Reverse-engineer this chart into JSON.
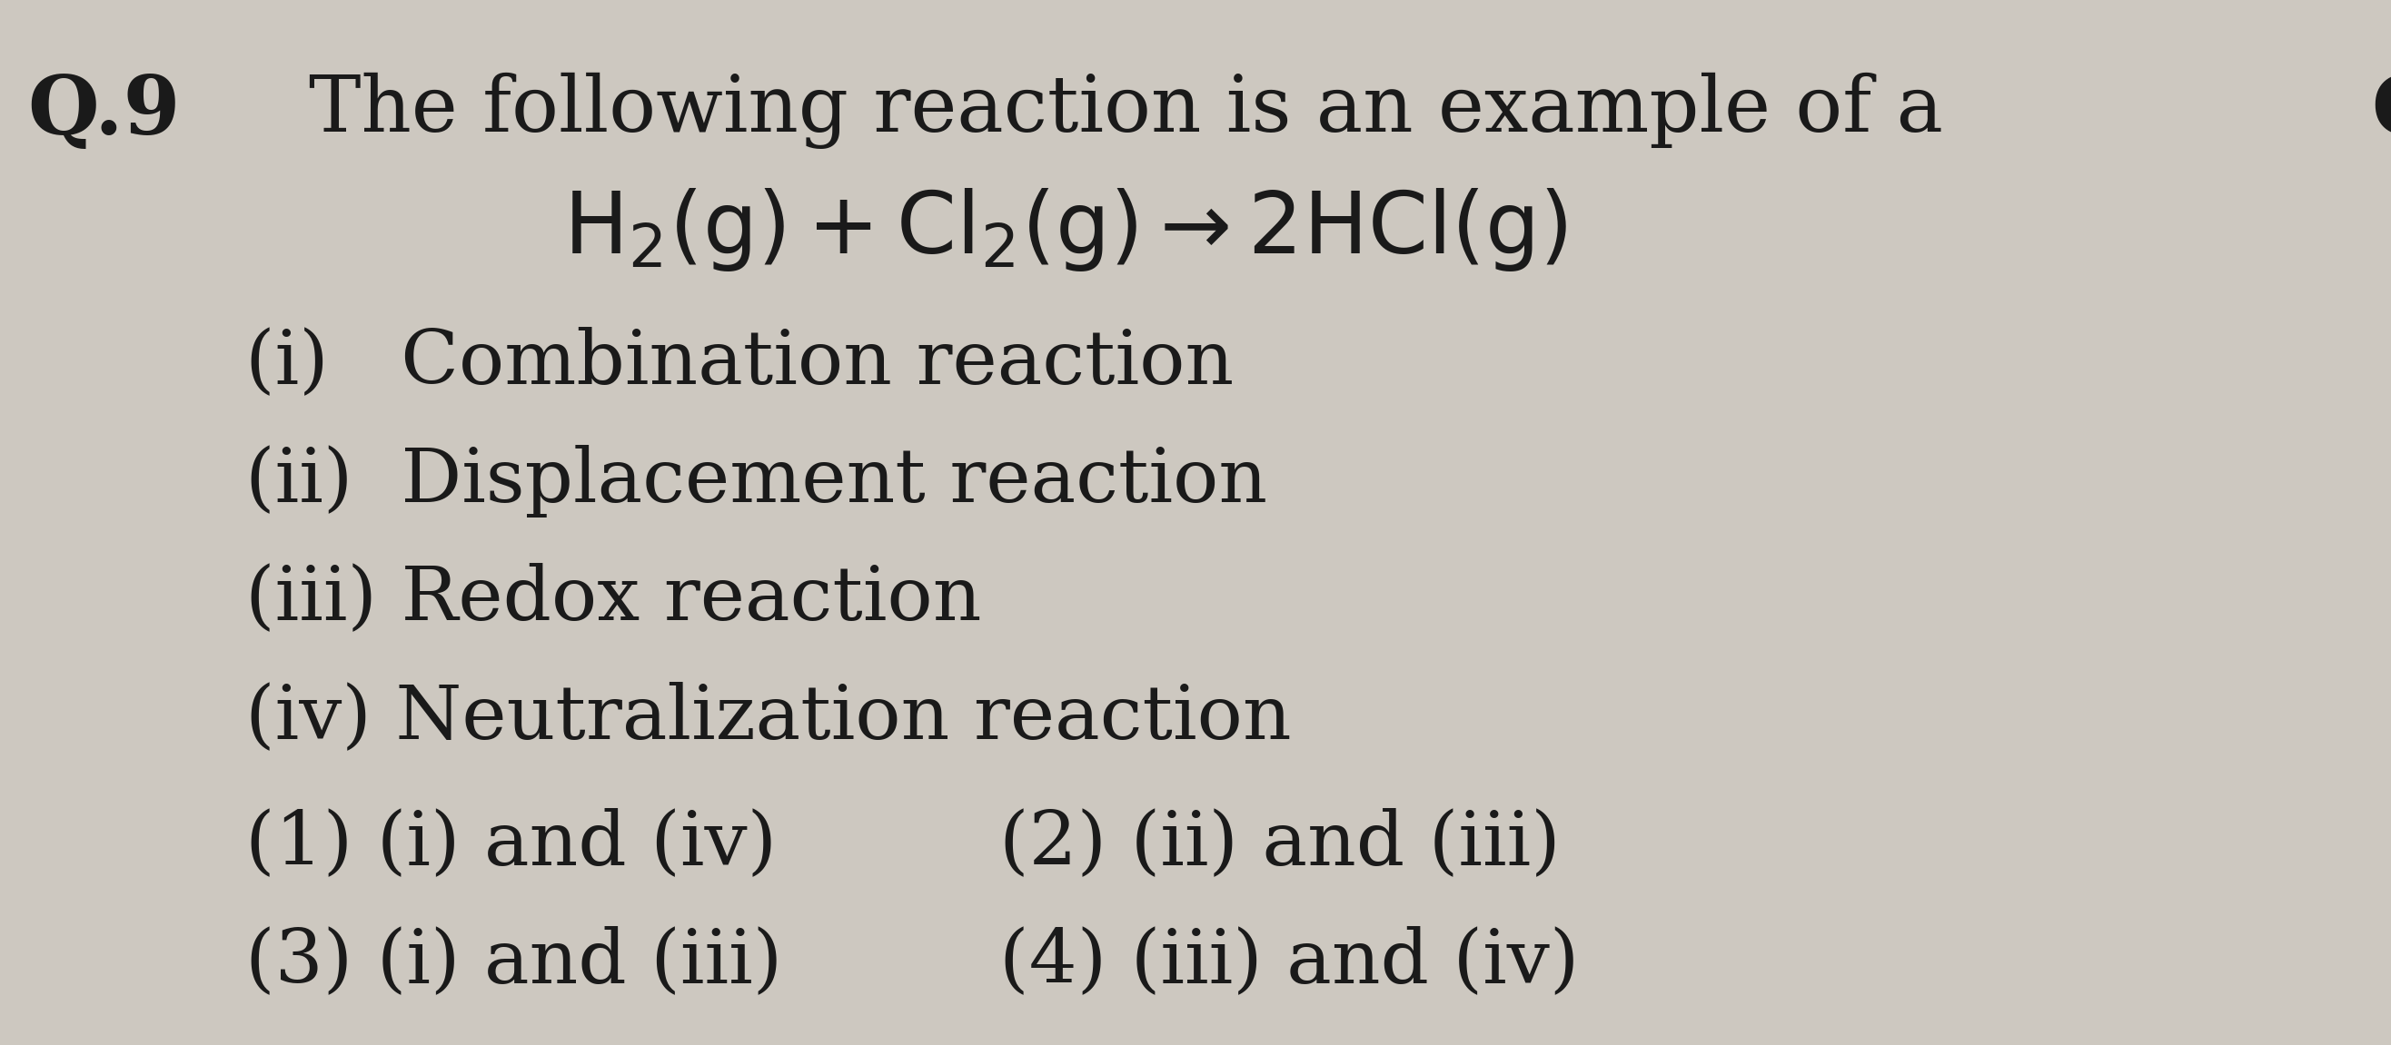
{
  "bg_color": "#cdc8c0",
  "text_color": "#1a1a1a",
  "question_number": "Q.9",
  "q_label_right": "Q",
  "line1": "The following reaction is an example of a",
  "equation": "$\\mathrm{H_2(g) + Cl_2(g) \\rightarrow 2HCl(g)}$",
  "options": [
    "(i)   Combination reaction",
    "(ii)  Displacement reaction",
    "(iii) Redox reaction",
    "(iv) Neutralization reaction"
  ],
  "answers_left": [
    "(1) (i) and (iv)",
    "(3) (i) and (iii)"
  ],
  "answers_right": [
    "(2) (ii) and (iii)",
    "(4) (iii) and (iv)"
  ],
  "font_size_main": 62,
  "font_size_qnum": 65,
  "font_size_equation": 68,
  "font_size_options": 60,
  "font_size_answers": 60
}
